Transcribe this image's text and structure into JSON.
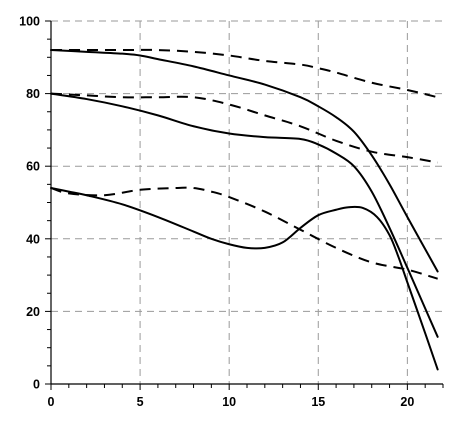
{
  "chart_data": {
    "type": "line",
    "title": "",
    "xlabel": "",
    "ylabel": "",
    "xlim": [
      0,
      22
    ],
    "ylim": [
      0,
      100
    ],
    "x_ticks": [
      0,
      5,
      10,
      15,
      20
    ],
    "y_ticks": [
      0,
      20,
      40,
      60,
      80,
      100
    ],
    "x_minor_step": 1,
    "y_minor_step": 5,
    "grid": true,
    "legend": "none",
    "colors": {
      "line": "#000000",
      "grid": "#9a9a9a",
      "axis": "#000000"
    },
    "series": [
      {
        "style": "dashed",
        "x": [
          0,
          2,
          4,
          6,
          8,
          10,
          12,
          14,
          15,
          16,
          18,
          20,
          21.7
        ],
        "y": [
          92,
          92,
          92,
          92,
          91.5,
          90.5,
          89,
          88,
          87,
          85.8,
          83,
          81,
          79
        ]
      },
      {
        "style": "dashed",
        "x": [
          0,
          2,
          4,
          6,
          8,
          10,
          12,
          14,
          16,
          18,
          20,
          21.7
        ],
        "y": [
          80,
          79.5,
          79,
          79,
          79,
          77,
          74,
          71,
          67,
          64,
          62.5,
          61
        ]
      },
      {
        "style": "dashed",
        "x": [
          0,
          1,
          3,
          5,
          7,
          8,
          9,
          10,
          12,
          14,
          16,
          18,
          20,
          21.7
        ],
        "y": [
          54,
          52.5,
          52,
          53.5,
          54,
          54,
          53,
          51.5,
          47.5,
          42.5,
          37.5,
          33.5,
          31.5,
          29
        ]
      },
      {
        "style": "solid",
        "x": [
          0,
          2,
          4,
          5,
          6,
          8,
          10,
          12,
          14,
          15,
          16,
          17,
          18,
          19,
          20,
          21.7
        ],
        "y": [
          92,
          91.5,
          91,
          90.5,
          89.5,
          87.5,
          85,
          82.5,
          79,
          76.5,
          73.5,
          69.5,
          63,
          55,
          46,
          31
        ]
      },
      {
        "style": "solid",
        "x": [
          0,
          2,
          4,
          6,
          8,
          10,
          12,
          14,
          15,
          16,
          17,
          18,
          19,
          20,
          21.7
        ],
        "y": [
          80,
          78.5,
          76.5,
          74,
          71,
          69,
          68,
          67.5,
          66,
          63.5,
          60,
          53,
          43,
          32,
          13
        ]
      },
      {
        "style": "solid",
        "x": [
          0,
          1,
          2,
          4,
          6,
          8,
          9,
          10,
          11,
          12,
          13,
          14,
          15,
          16,
          16.7,
          17.5,
          18.3,
          19,
          19.5,
          20,
          21,
          21.7
        ],
        "y": [
          54,
          53,
          52,
          49.5,
          46,
          42,
          40,
          38.5,
          37.5,
          37.5,
          39,
          43,
          46.5,
          48,
          48.7,
          48.5,
          46,
          41,
          35,
          28,
          14,
          4
        ]
      }
    ]
  }
}
